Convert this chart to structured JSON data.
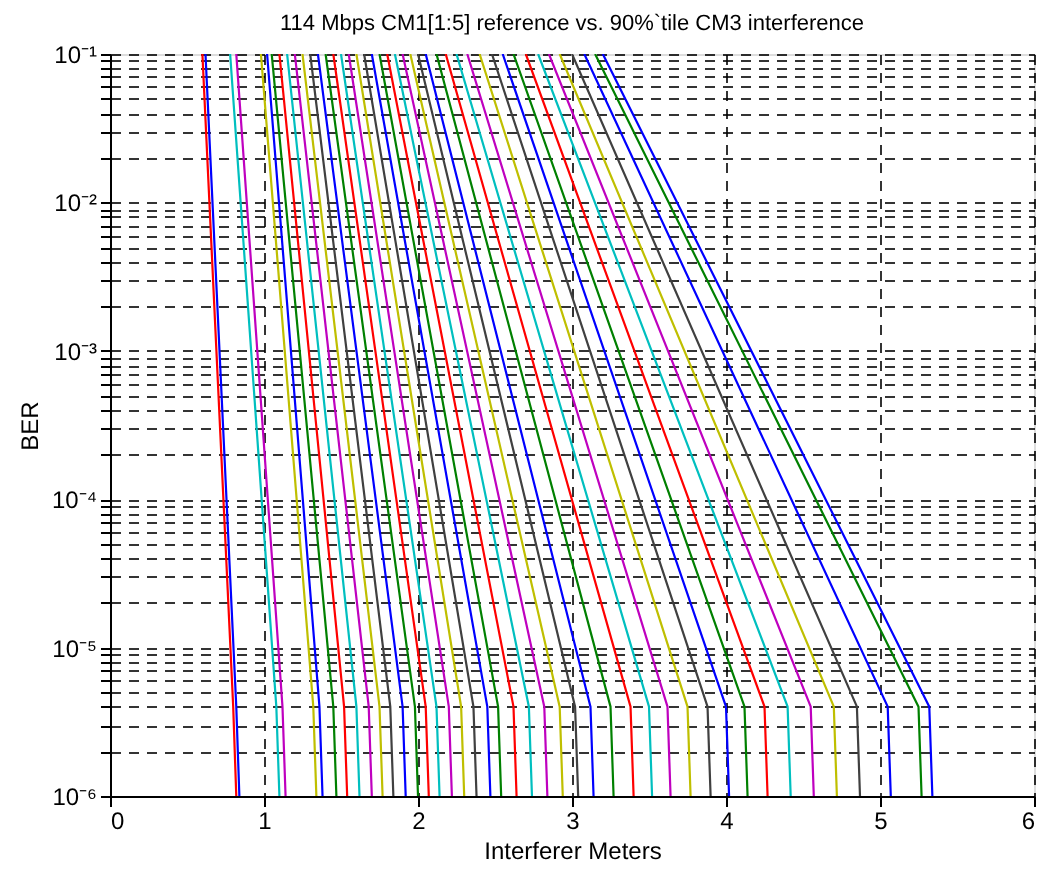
{
  "chart_data": {
    "type": "line",
    "title": "114 Mbps CM1[1:5] reference vs. 90%`tile CM3 interference",
    "xlabel": "Interferer Meters",
    "ylabel": "BER",
    "log": "y",
    "grid": true,
    "line_style": "solid",
    "marker": "none",
    "legend": false,
    "xlim": [
      0,
      6
    ],
    "xticks": [
      0,
      1,
      2,
      3,
      4,
      5,
      6
    ],
    "ylim": [
      1e-06,
      0.1
    ],
    "yticks": [
      {
        "value": 1e-06,
        "label": "10⁻⁶"
      },
      {
        "value": 2e-06,
        "label": null
      },
      {
        "value": 3e-06,
        "label": null
      },
      {
        "value": 4e-06,
        "label": null
      },
      {
        "value": 5e-06,
        "label": null
      },
      {
        "value": 6e-06,
        "label": null
      },
      {
        "value": 7e-06,
        "label": null
      },
      {
        "value": 8e-06,
        "label": null
      },
      {
        "value": 9e-06,
        "label": null
      },
      {
        "value": 1e-05,
        "label": "10⁻⁵"
      },
      {
        "value": 2e-05,
        "label": null
      },
      {
        "value": 3e-05,
        "label": null
      },
      {
        "value": 4e-05,
        "label": null
      },
      {
        "value": 5e-05,
        "label": null
      },
      {
        "value": 6e-05,
        "label": null
      },
      {
        "value": 7e-05,
        "label": null
      },
      {
        "value": 8e-05,
        "label": null
      },
      {
        "value": 9e-05,
        "label": null
      },
      {
        "value": 0.0001,
        "label": "10⁻⁴"
      },
      {
        "value": 0.0002,
        "label": null
      },
      {
        "value": 0.0003,
        "label": null
      },
      {
        "value": 0.0004,
        "label": null
      },
      {
        "value": 0.0005,
        "label": null
      },
      {
        "value": 0.0006,
        "label": null
      },
      {
        "value": 0.0007,
        "label": null
      },
      {
        "value": 0.0008,
        "label": null
      },
      {
        "value": 0.0009,
        "label": null
      },
      {
        "value": 0.001,
        "label": "10⁻³"
      },
      {
        "value": 0.002,
        "label": null
      },
      {
        "value": 0.003,
        "label": null
      },
      {
        "value": 0.004,
        "label": null
      },
      {
        "value": 0.005,
        "label": null
      },
      {
        "value": 0.006,
        "label": null
      },
      {
        "value": 0.007,
        "label": null
      },
      {
        "value": 0.008,
        "label": null
      },
      {
        "value": 0.009,
        "label": null
      },
      {
        "value": 0.01,
        "label": "10⁻²"
      },
      {
        "value": 0.02,
        "label": null
      },
      {
        "value": 0.03,
        "label": null
      },
      {
        "value": 0.04,
        "label": null
      },
      {
        "value": 0.05,
        "label": null
      },
      {
        "value": 0.06,
        "label": null
      },
      {
        "value": 0.07,
        "label": null
      },
      {
        "value": 0.08,
        "label": null
      },
      {
        "value": 0.09,
        "label": null
      },
      {
        "value": 0.1,
        "label": "10⁻¹"
      }
    ],
    "series": [
      {
        "color": "#ff0000",
        "x": [
          0.6,
          0.8,
          0.82
        ],
        "values": [
          0.1,
          4e-06,
          1e-06
        ]
      },
      {
        "color": "#0000ff",
        "x": [
          0.62,
          0.82,
          0.84
        ],
        "values": [
          0.1,
          4e-06,
          1e-06
        ]
      },
      {
        "color": "#00bfbf",
        "x": [
          0.78,
          1.08,
          1.1
        ],
        "values": [
          0.1,
          4e-06,
          1e-06
        ]
      },
      {
        "color": "#bf00bf",
        "x": [
          0.82,
          1.12,
          1.14
        ],
        "values": [
          0.1,
          4e-06,
          1e-06
        ]
      },
      {
        "color": "#bfbf00",
        "x": [
          0.98,
          1.32,
          1.34
        ],
        "values": [
          0.1,
          4e-06,
          1e-06
        ]
      },
      {
        "color": "#0000ff",
        "x": [
          1.02,
          1.36,
          1.38
        ],
        "values": [
          0.1,
          4e-06,
          1e-06
        ]
      },
      {
        "color": "#008000",
        "x": [
          1.05,
          1.45,
          1.47
        ],
        "values": [
          0.1,
          4e-06,
          1e-06
        ]
      },
      {
        "color": "#ff0000",
        "x": [
          1.1,
          1.52,
          1.54
        ],
        "values": [
          0.1,
          4e-06,
          1e-06
        ]
      },
      {
        "color": "#00bfbf",
        "x": [
          1.15,
          1.6,
          1.62
        ],
        "values": [
          0.1,
          4e-06,
          1e-06
        ]
      },
      {
        "color": "#bf00bf",
        "x": [
          1.2,
          1.68,
          1.7
        ],
        "values": [
          0.1,
          4e-06,
          1e-06
        ]
      },
      {
        "color": "#bfbf00",
        "x": [
          1.25,
          1.75,
          1.77
        ],
        "values": [
          0.1,
          4e-06,
          1e-06
        ]
      },
      {
        "color": "#404040",
        "x": [
          1.3,
          1.82,
          1.84
        ],
        "values": [
          0.1,
          4e-06,
          1e-06
        ]
      },
      {
        "color": "#0000ff",
        "x": [
          1.35,
          1.9,
          1.92
        ],
        "values": [
          0.1,
          4e-06,
          1e-06
        ]
      },
      {
        "color": "#008000",
        "x": [
          1.4,
          1.98,
          2.0
        ],
        "values": [
          0.1,
          4e-06,
          1e-06
        ]
      },
      {
        "color": "#ff0000",
        "x": [
          1.45,
          2.05,
          2.07
        ],
        "values": [
          0.1,
          4e-06,
          1e-06
        ]
      },
      {
        "color": "#00bfbf",
        "x": [
          1.5,
          2.12,
          2.14
        ],
        "values": [
          0.1,
          4e-06,
          1e-06
        ]
      },
      {
        "color": "#bf00bf",
        "x": [
          1.55,
          2.2,
          2.22
        ],
        "values": [
          0.1,
          4e-06,
          1e-06
        ]
      },
      {
        "color": "#bfbf00",
        "x": [
          1.6,
          2.28,
          2.3
        ],
        "values": [
          0.1,
          4e-06,
          1e-06
        ]
      },
      {
        "color": "#404040",
        "x": [
          1.65,
          2.36,
          2.38
        ],
        "values": [
          0.1,
          4e-06,
          1e-06
        ]
      },
      {
        "color": "#0000ff",
        "x": [
          1.7,
          2.45,
          2.47
        ],
        "values": [
          0.1,
          4e-06,
          1e-06
        ]
      },
      {
        "color": "#008000",
        "x": [
          1.75,
          2.52,
          2.54
        ],
        "values": [
          0.1,
          4e-06,
          1e-06
        ]
      },
      {
        "color": "#ff0000",
        "x": [
          1.8,
          2.62,
          2.64
        ],
        "values": [
          0.1,
          4e-06,
          1e-06
        ]
      },
      {
        "color": "#00bfbf",
        "x": [
          1.85,
          2.72,
          2.74
        ],
        "values": [
          0.1,
          4e-06,
          1e-06
        ]
      },
      {
        "color": "#bf00bf",
        "x": [
          1.9,
          2.82,
          2.84
        ],
        "values": [
          0.1,
          4e-06,
          1e-06
        ]
      },
      {
        "color": "#bfbf00",
        "x": [
          1.95,
          2.92,
          2.94
        ],
        "values": [
          0.1,
          4e-06,
          1e-06
        ]
      },
      {
        "color": "#404040",
        "x": [
          2.0,
          3.02,
          3.04
        ],
        "values": [
          0.1,
          4e-06,
          1e-06
        ]
      },
      {
        "color": "#0000ff",
        "x": [
          2.05,
          3.12,
          3.14
        ],
        "values": [
          0.1,
          4e-06,
          1e-06
        ]
      },
      {
        "color": "#008000",
        "x": [
          2.12,
          3.25,
          3.27
        ],
        "values": [
          0.1,
          4e-06,
          1e-06
        ]
      },
      {
        "color": "#ff0000",
        "x": [
          2.18,
          3.38,
          3.4
        ],
        "values": [
          0.1,
          4e-06,
          1e-06
        ]
      },
      {
        "color": "#00bfbf",
        "x": [
          2.25,
          3.5,
          3.52
        ],
        "values": [
          0.1,
          4e-06,
          1e-06
        ]
      },
      {
        "color": "#bf00bf",
        "x": [
          2.32,
          3.62,
          3.64
        ],
        "values": [
          0.1,
          4e-06,
          1e-06
        ]
      },
      {
        "color": "#bfbf00",
        "x": [
          2.4,
          3.75,
          3.77
        ],
        "values": [
          0.1,
          4e-06,
          1e-06
        ]
      },
      {
        "color": "#404040",
        "x": [
          2.48,
          3.88,
          3.9
        ],
        "values": [
          0.1,
          4e-06,
          1e-06
        ]
      },
      {
        "color": "#0000ff",
        "x": [
          2.55,
          4.0,
          4.02
        ],
        "values": [
          0.1,
          4e-06,
          1e-06
        ]
      },
      {
        "color": "#008000",
        "x": [
          2.62,
          4.12,
          4.14
        ],
        "values": [
          0.1,
          4e-06,
          1e-06
        ]
      },
      {
        "color": "#ff0000",
        "x": [
          2.7,
          4.25,
          4.27
        ],
        "values": [
          0.1,
          4e-06,
          1e-06
        ]
      },
      {
        "color": "#00bfbf",
        "x": [
          2.78,
          4.4,
          4.42
        ],
        "values": [
          0.1,
          4e-06,
          1e-06
        ]
      },
      {
        "color": "#bf00bf",
        "x": [
          2.85,
          4.55,
          4.57
        ],
        "values": [
          0.1,
          4e-06,
          1e-06
        ]
      },
      {
        "color": "#bfbf00",
        "x": [
          2.92,
          4.7,
          4.72
        ],
        "values": [
          0.1,
          4e-06,
          1e-06
        ]
      },
      {
        "color": "#404040",
        "x": [
          3.0,
          4.85,
          4.87
        ],
        "values": [
          0.1,
          4e-06,
          1e-06
        ]
      },
      {
        "color": "#0000ff",
        "x": [
          3.08,
          5.05,
          5.07
        ],
        "values": [
          0.1,
          4e-06,
          1e-06
        ]
      },
      {
        "color": "#008000",
        "x": [
          3.15,
          5.25,
          5.27
        ],
        "values": [
          0.1,
          4e-06,
          1e-06
        ]
      },
      {
        "color": "#0000ff",
        "x": [
          3.2,
          5.32,
          5.34
        ],
        "values": [
          0.1,
          4e-06,
          1e-06
        ]
      }
    ]
  }
}
